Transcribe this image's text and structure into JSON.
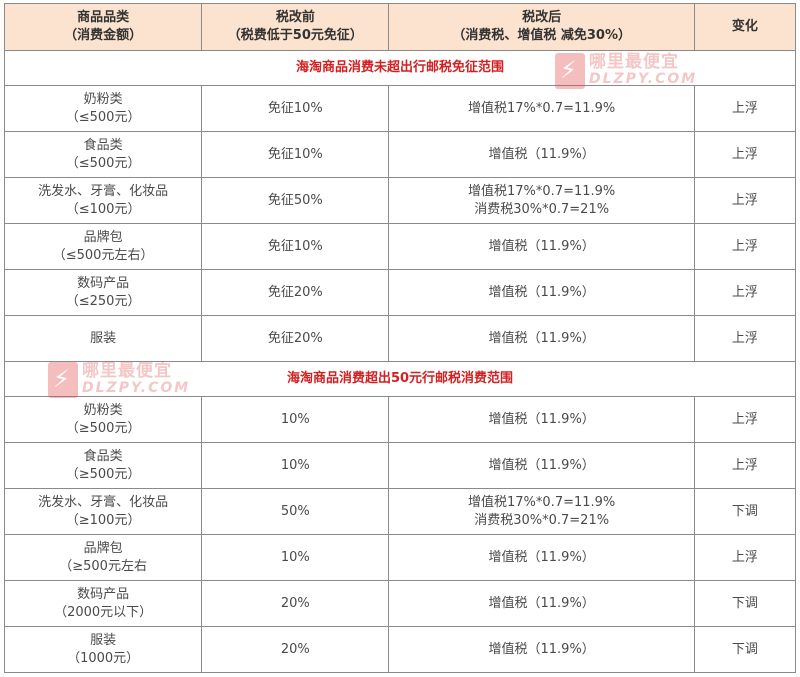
{
  "headers": {
    "col1_line1": "商品品类",
    "col1_line2": "（消费金额）",
    "col2_line1": "税改前",
    "col2_line2": "（税费低于50元免征）",
    "col3_line1": "税改后",
    "col3_line2": "（消费税、增值税 减免30%）",
    "col4": "变化"
  },
  "section1": {
    "title": "海淘商品消费未超出行邮税免征范围",
    "rows": [
      {
        "cat": "奶粉类",
        "amount": "（≤500元）",
        "before": "免征10%",
        "after1": "增值税17%*0.7=11.9%",
        "after2": "",
        "change": "上浮"
      },
      {
        "cat": "食品类",
        "amount": "（≤500元）",
        "before": "免征10%",
        "after1": "增值税（11.9%）",
        "after2": "",
        "change": "上浮"
      },
      {
        "cat": "洗发水、牙膏、化妆品",
        "amount": "（≤100元）",
        "before": "免征50%",
        "after1": "增值税17%*0.7=11.9%",
        "after2": "消费税30%*0.7=21%",
        "change": "上浮"
      },
      {
        "cat": "品牌包",
        "amount": "（≤500元左右）",
        "before": "免征10%",
        "after1": "增值税（11.9%）",
        "after2": "",
        "change": "上浮"
      },
      {
        "cat": "数码产品",
        "amount": "（≤250元）",
        "before": "免征20%",
        "after1": "增值税（11.9%）",
        "after2": "",
        "change": "上浮"
      },
      {
        "cat": "服装",
        "amount": "",
        "before": "免征20%",
        "after1": "增值税（11.9%）",
        "after2": "",
        "change": "上浮"
      }
    ]
  },
  "section2": {
    "title": "海淘商品消费超出50元行邮税消费范围",
    "rows": [
      {
        "cat": "奶粉类",
        "amount": "（≥500元）",
        "before": "10%",
        "after1": "增值税（11.9%）",
        "after2": "",
        "change": "上浮"
      },
      {
        "cat": "食品类",
        "amount": "（≥500元）",
        "before": "10%",
        "after1": "增值税（11.9%）",
        "after2": "",
        "change": "上浮"
      },
      {
        "cat": "洗发水、牙膏、化妆品",
        "amount": "（≥100元）",
        "before": "50%",
        "after1": "增值税17%*0.7=11.9%",
        "after2": "消费税30%*0.7=21%",
        "change": "下调"
      },
      {
        "cat": "品牌包",
        "amount": "（≥500元左右",
        "before": "10%",
        "after1": "增值税（11.9%）",
        "after2": "",
        "change": "上浮"
      },
      {
        "cat": "数码产品",
        "amount": "（2000元以下）",
        "before": "20%",
        "after1": "增值税（11.9%）",
        "after2": "",
        "change": "下调"
      },
      {
        "cat": "服装",
        "amount": "（1000元）",
        "before": "20%",
        "after1": "增值税（11.9%）",
        "after2": "",
        "change": "下调"
      }
    ]
  },
  "watermarks": [
    {
      "line1": "哪里最便宜",
      "line2": "DLZPY.COM"
    },
    {
      "line1": "哪里最便宜",
      "line2": "DLZPY.COM"
    }
  ]
}
